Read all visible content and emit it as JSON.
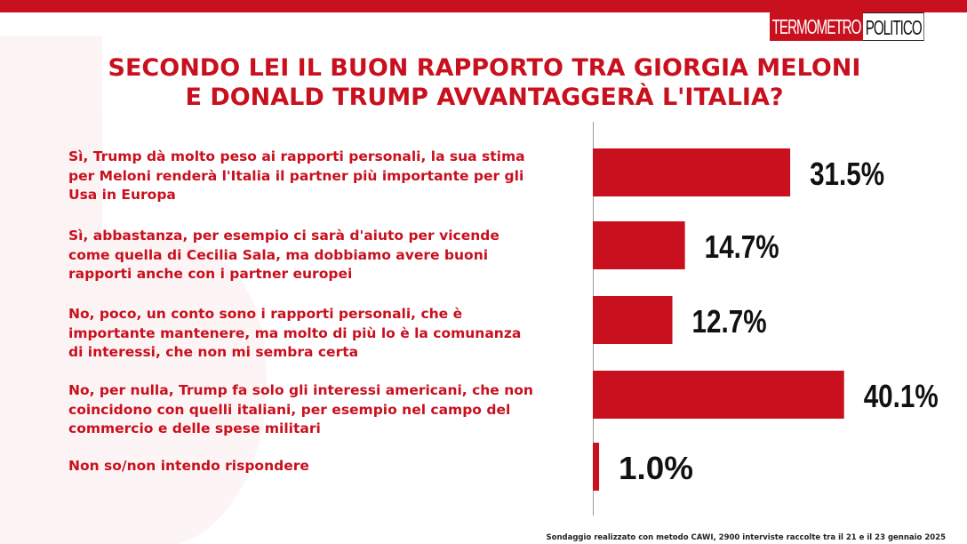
{
  "brand": {
    "part1": "TERMOMETRO",
    "part2": "POLITICO"
  },
  "title_lines": [
    "SECONDO LEI IL BUON RAPPORTO TRA GIORGIA MELONI",
    "E DONALD TRUMP AVVANTAGGERÀ L'ITALIA?"
  ],
  "colors": {
    "accent": "#c8101e",
    "value_text": "#111111",
    "axis": "#9a9a9a"
  },
  "chart_data": {
    "type": "bar",
    "orientation": "horizontal",
    "title": "SECONDO LEI IL BUON RAPPORTO TRA GIORGIA MELONI E DONALD TRUMP AVVANTAGGERÀ L'ITALIA?",
    "categories": [
      "Sì, Trump dà  molto peso ai rapporti personali, la sua stima per Meloni renderà l'Italia il partner più importante per gli Usa in Europa",
      "Sì, abbastanza, per esempio ci sarà  d'aiuto per vicende come quella di Cecilia Sala, ma dobbiamo avere buoni rapporti anche con i partner europei",
      "No, poco, un conto sono i rapporti personali, che è importante mantenere, ma molto di più lo è la comunanza di interessi, che non mi sembra certa",
      "No, per nulla, Trump fa solo gli interessi americani, che non coincidono con quelli italiani, per esempio nel campo del commercio e delle spese militari",
      "Non so/non intendo rispondere"
    ],
    "category_lines": [
      [
        "Sì, Trump dà  molto peso ai rapporti personali, la sua stima",
        "per Meloni renderà l'Italia il partner più importante per gli",
        "Usa in Europa"
      ],
      [
        "Sì, abbastanza, per esempio ci sarà  d'aiuto per vicende",
        "come quella di Cecilia Sala, ma dobbiamo avere buoni",
        "rapporti anche con i partner europei"
      ],
      [
        "No, poco, un conto sono i rapporti personali, che è",
        "importante mantenere, ma molto di più lo è la comunanza",
        "di interessi, che non mi sembra certa"
      ],
      [
        "No, per nulla, Trump fa solo gli interessi americani, che non",
        "coincidono con quelli italiani, per esempio nel campo del",
        "commercio e delle spese militari"
      ],
      [
        "Non so/non intendo rispondere"
      ]
    ],
    "values": [
      31.5,
      14.7,
      12.7,
      40.1,
      1.0
    ],
    "value_labels": [
      "31.5%",
      "14.7%",
      "12.7%",
      "40.1%",
      "1.0%"
    ],
    "unit": "%",
    "xlim": [
      0,
      45
    ],
    "grid": false,
    "legend": "none"
  },
  "footnote": "Sondaggio realizzato con metodo CAWI, 2900 interviste raccolte tra il 21 e il 23 gennaio 2025"
}
